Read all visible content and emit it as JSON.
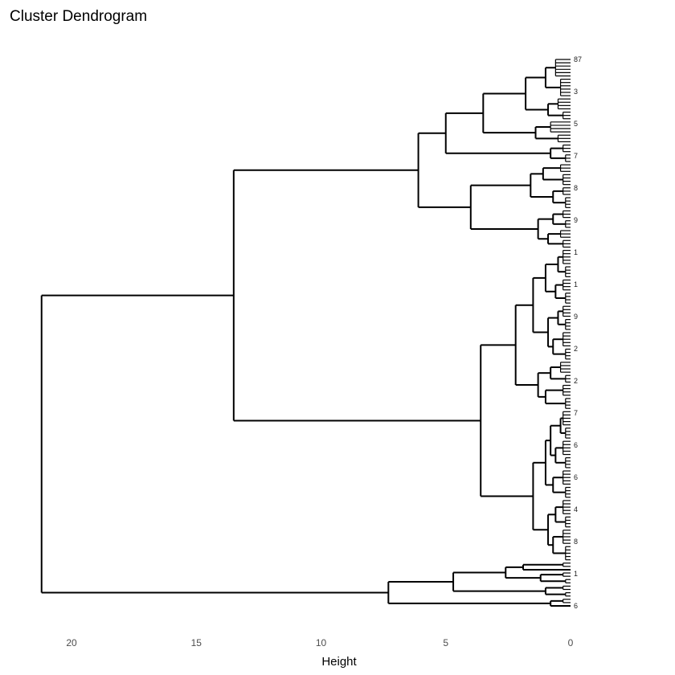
{
  "chart_data": {
    "type": "dendrogram",
    "orientation": "horizontal",
    "title": "Cluster Dendrogram",
    "xlabel": "Height",
    "xlim": [
      22,
      -3.3
    ],
    "xticks": [
      20,
      15,
      10,
      5,
      0
    ],
    "xtick_labels": [
      "20",
      "15",
      "10",
      "5",
      "0"
    ],
    "grid": false,
    "visible_leaf_labels": [
      "87",
      "3",
      "5",
      "7",
      "8",
      "9",
      "1",
      "1",
      "9",
      "2",
      "2",
      "7",
      "6",
      "6",
      "4",
      "8",
      "1",
      "6"
    ],
    "tree": {
      "h": 21.2,
      "children": [
        {
          "h": 13.5,
          "children": [
            {
              "h": 6.1,
              "children": [
                {
                  "h": 5.0,
                  "children": [
                    {
                      "h": 3.5,
                      "children": [
                        {
                          "h": 1.8,
                          "children": [
                            {
                              "h": 1.0,
                              "children": [
                                {
                                  "n": 6,
                                  "h": 0.6
                                },
                                {
                                  "n": 6,
                                  "h": 0.4
                                }
                              ]
                            },
                            {
                              "h": 0.9,
                              "children": [
                                {
                                  "n": 4,
                                  "h": 0.5
                                },
                                {
                                  "n": 3,
                                  "h": 0.3
                                }
                              ]
                            }
                          ]
                        },
                        {
                          "h": 1.4,
                          "children": [
                            {
                              "n": 4,
                              "h": 0.8
                            },
                            {
                              "n": 3,
                              "h": 0.5
                            }
                          ]
                        }
                      ]
                    },
                    {
                      "h": 0.8,
                      "children": [
                        {
                          "n": 3,
                          "h": 0.3
                        },
                        {
                          "n": 3,
                          "h": 0.2
                        }
                      ]
                    }
                  ]
                },
                {
                  "h": 4.0,
                  "children": [
                    {
                      "h": 1.6,
                      "children": [
                        {
                          "h": 1.1,
                          "children": [
                            {
                              "n": 3,
                              "h": 0.4
                            },
                            {
                              "n": 4,
                              "h": 0.3
                            }
                          ]
                        },
                        {
                          "h": 0.7,
                          "children": [
                            {
                              "n": 3,
                              "h": 0.3
                            },
                            {
                              "n": 4,
                              "h": 0.2
                            }
                          ]
                        }
                      ]
                    },
                    {
                      "h": 1.3,
                      "children": [
                        {
                          "h": 0.7,
                          "children": [
                            {
                              "n": 3,
                              "h": 0.3
                            },
                            {
                              "n": 3,
                              "h": 0.2
                            }
                          ]
                        },
                        {
                          "h": 0.9,
                          "children": [
                            {
                              "n": 3,
                              "h": 0.4
                            },
                            {
                              "n": 3,
                              "h": 0.3
                            }
                          ]
                        }
                      ]
                    }
                  ]
                }
              ]
            },
            {
              "h": 3.6,
              "children": [
                {
                  "h": 2.2,
                  "children": [
                    {
                      "h": 1.5,
                      "children": [
                        {
                          "h": 1.0,
                          "children": [
                            {
                              "h": 0.5,
                              "children": [
                                {
                                  "n": 5,
                                  "h": 0.3
                                },
                                {
                                  "n": 4,
                                  "h": 0.2
                                }
                              ]
                            },
                            {
                              "h": 0.6,
                              "children": [
                                {
                                  "n": 4,
                                  "h": 0.3
                                },
                                {
                                  "n": 4,
                                  "h": 0.2
                                }
                              ]
                            }
                          ]
                        },
                        {
                          "h": 0.9,
                          "children": [
                            {
                              "h": 0.5,
                              "children": [
                                {
                                  "n": 4,
                                  "h": 0.3
                                },
                                {
                                  "n": 4,
                                  "h": 0.2
                                }
                              ]
                            },
                            {
                              "h": 0.7,
                              "children": [
                                {
                                  "n": 5,
                                  "h": 0.3
                                },
                                {
                                  "n": 4,
                                  "h": 0.2
                                }
                              ]
                            }
                          ]
                        }
                      ]
                    },
                    {
                      "h": 1.3,
                      "children": [
                        {
                          "h": 0.8,
                          "children": [
                            {
                              "n": 4,
                              "h": 0.4
                            },
                            {
                              "n": 3,
                              "h": 0.2
                            }
                          ]
                        },
                        {
                          "h": 1.0,
                          "children": [
                            {
                              "n": 4,
                              "h": 0.3
                            },
                            {
                              "n": 4,
                              "h": 0.2
                            }
                          ]
                        }
                      ]
                    }
                  ]
                },
                {
                  "h": 1.5,
                  "children": [
                    {
                      "h": 1.0,
                      "children": [
                        {
                          "h": 0.8,
                          "children": [
                            {
                              "h": 0.4,
                              "children": [
                                {
                                  "n": 5,
                                  "h": 0.3
                                },
                                {
                                  "n": 4,
                                  "h": 0.2
                                }
                              ]
                            },
                            {
                              "h": 0.6,
                              "children": [
                                {
                                  "n": 5,
                                  "h": 0.3
                                },
                                {
                                  "n": 4,
                                  "h": 0.2
                                }
                              ]
                            }
                          ]
                        },
                        {
                          "h": 0.7,
                          "children": [
                            {
                              "n": 5,
                              "h": 0.3
                            },
                            {
                              "n": 4,
                              "h": 0.2
                            }
                          ]
                        }
                      ]
                    },
                    {
                      "h": 0.9,
                      "children": [
                        {
                          "h": 0.6,
                          "children": [
                            {
                              "n": 5,
                              "h": 0.3
                            },
                            {
                              "n": 4,
                              "h": 0.2
                            }
                          ]
                        },
                        {
                          "h": 0.7,
                          "children": [
                            {
                              "n": 5,
                              "h": 0.3
                            },
                            {
                              "n": 5,
                              "h": 0.2
                            }
                          ]
                        }
                      ]
                    }
                  ]
                }
              ]
            }
          ]
        },
        {
          "h": 7.3,
          "children": [
            {
              "h": 4.7,
              "children": [
                {
                  "h": 2.6,
                  "children": [
                    {
                      "h": 1.9,
                      "children": [
                        {
                          "n": 2,
                          "h": 0.3
                        },
                        {
                          "n": 1,
                          "h": 0.0
                        }
                      ]
                    },
                    {
                      "h": 1.2,
                      "children": [
                        {
                          "n": 2,
                          "h": 0.3
                        },
                        {
                          "n": 2,
                          "h": 0.2
                        }
                      ]
                    }
                  ]
                },
                {
                  "h": 1.0,
                  "children": [
                    {
                      "n": 2,
                      "h": 0.3
                    },
                    {
                      "n": 2,
                      "h": 0.2
                    }
                  ]
                }
              ]
            },
            {
              "h": 0.8,
              "children": [
                {
                  "n": 2,
                  "h": 0.3
                },
                {
                  "n": 1,
                  "h": 0.0
                }
              ]
            }
          ]
        }
      ]
    }
  }
}
